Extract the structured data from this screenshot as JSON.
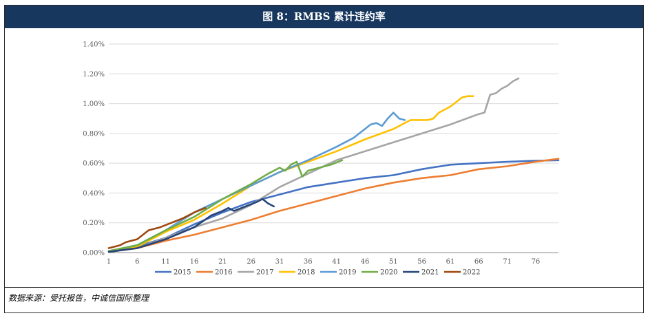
{
  "header": {
    "title": "图 8：RMBS 累计违约率"
  },
  "footer": {
    "source": "数据来源：受托报告，中诚信国际整理"
  },
  "chart_data": {
    "type": "line",
    "title": "图 8：RMBS 累计违约率",
    "xlabel": "",
    "ylabel": "",
    "xlim": [
      1,
      80
    ],
    "ylim": [
      0,
      1.4
    ],
    "y_ticks": [
      "0.00%",
      "0.20%",
      "0.40%",
      "0.60%",
      "0.80%",
      "1.00%",
      "1.20%",
      "1.40%"
    ],
    "x_ticks": [
      "1",
      "6",
      "11",
      "16",
      "21",
      "26",
      "31",
      "36",
      "41",
      "46",
      "51",
      "56",
      "61",
      "66",
      "71",
      "76"
    ],
    "legend_position": "bottom",
    "series": [
      {
        "name": "2015",
        "color": "#4472c4",
        "points": [
          [
            1,
            0.01
          ],
          [
            6,
            0.04
          ],
          [
            11,
            0.1
          ],
          [
            16,
            0.19
          ],
          [
            21,
            0.27
          ],
          [
            26,
            0.34
          ],
          [
            31,
            0.39
          ],
          [
            36,
            0.44
          ],
          [
            41,
            0.47
          ],
          [
            46,
            0.5
          ],
          [
            51,
            0.52
          ],
          [
            56,
            0.56
          ],
          [
            61,
            0.59
          ],
          [
            66,
            0.6
          ],
          [
            71,
            0.61
          ],
          [
            76,
            0.617
          ],
          [
            80,
            0.62
          ]
        ]
      },
      {
        "name": "2016",
        "color": "#ed7d31",
        "points": [
          [
            1,
            0.005
          ],
          [
            6,
            0.03
          ],
          [
            11,
            0.08
          ],
          [
            16,
            0.12
          ],
          [
            21,
            0.17
          ],
          [
            26,
            0.22
          ],
          [
            31,
            0.28
          ],
          [
            36,
            0.33
          ],
          [
            41,
            0.38
          ],
          [
            46,
            0.43
          ],
          [
            51,
            0.47
          ],
          [
            56,
            0.5
          ],
          [
            61,
            0.52
          ],
          [
            66,
            0.56
          ],
          [
            71,
            0.58
          ],
          [
            76,
            0.61
          ],
          [
            80,
            0.63
          ]
        ]
      },
      {
        "name": "2017",
        "color": "#a5a5a5",
        "points": [
          [
            1,
            0.005
          ],
          [
            6,
            0.03
          ],
          [
            11,
            0.1
          ],
          [
            16,
            0.17
          ],
          [
            21,
            0.23
          ],
          [
            26,
            0.32
          ],
          [
            31,
            0.44
          ],
          [
            36,
            0.53
          ],
          [
            41,
            0.62
          ],
          [
            46,
            0.68
          ],
          [
            51,
            0.74
          ],
          [
            56,
            0.8
          ],
          [
            61,
            0.86
          ],
          [
            66,
            0.93
          ],
          [
            67,
            0.94
          ],
          [
            68,
            1.06
          ],
          [
            69,
            1.07
          ],
          [
            70,
            1.1
          ],
          [
            71,
            1.12
          ],
          [
            72,
            1.15
          ],
          [
            73,
            1.17
          ]
        ]
      },
      {
        "name": "2018",
        "color": "#ffc000",
        "points": [
          [
            1,
            0.005
          ],
          [
            6,
            0.04
          ],
          [
            11,
            0.14
          ],
          [
            16,
            0.22
          ],
          [
            21,
            0.33
          ],
          [
            26,
            0.45
          ],
          [
            31,
            0.54
          ],
          [
            36,
            0.61
          ],
          [
            41,
            0.68
          ],
          [
            46,
            0.76
          ],
          [
            51,
            0.83
          ],
          [
            54,
            0.89
          ],
          [
            57,
            0.89
          ],
          [
            58,
            0.9
          ],
          [
            59,
            0.94
          ],
          [
            61,
            0.98
          ],
          [
            63,
            1.04
          ],
          [
            64,
            1.05
          ],
          [
            65,
            1.05
          ]
        ]
      },
      {
        "name": "2019",
        "color": "#5b9bd5",
        "points": [
          [
            1,
            0.01
          ],
          [
            6,
            0.05
          ],
          [
            11,
            0.15
          ],
          [
            16,
            0.27
          ],
          [
            21,
            0.36
          ],
          [
            26,
            0.45
          ],
          [
            31,
            0.54
          ],
          [
            36,
            0.62
          ],
          [
            41,
            0.71
          ],
          [
            44,
            0.77
          ],
          [
            46,
            0.83
          ],
          [
            47,
            0.86
          ],
          [
            48,
            0.87
          ],
          [
            49,
            0.85
          ],
          [
            50,
            0.9
          ],
          [
            51,
            0.94
          ],
          [
            52,
            0.9
          ],
          [
            53,
            0.89
          ]
        ]
      },
      {
        "name": "2020",
        "color": "#70ad47",
        "points": [
          [
            1,
            0.01
          ],
          [
            6,
            0.05
          ],
          [
            11,
            0.15
          ],
          [
            16,
            0.24
          ],
          [
            21,
            0.36
          ],
          [
            26,
            0.46
          ],
          [
            29,
            0.53
          ],
          [
            31,
            0.57
          ],
          [
            32,
            0.55
          ],
          [
            33,
            0.59
          ],
          [
            34,
            0.61
          ],
          [
            35,
            0.51
          ],
          [
            36,
            0.55
          ],
          [
            38,
            0.57
          ],
          [
            40,
            0.59
          ],
          [
            42,
            0.62
          ]
        ]
      },
      {
        "name": "2021",
        "color": "#264478",
        "points": [
          [
            1,
            0.005
          ],
          [
            6,
            0.03
          ],
          [
            11,
            0.09
          ],
          [
            16,
            0.17
          ],
          [
            19,
            0.25
          ],
          [
            21,
            0.28
          ],
          [
            22,
            0.3
          ],
          [
            23,
            0.28
          ],
          [
            25,
            0.31
          ],
          [
            27,
            0.34
          ],
          [
            28,
            0.36
          ],
          [
            29,
            0.33
          ],
          [
            30,
            0.31
          ]
        ]
      },
      {
        "name": "2022",
        "color": "#9e480e",
        "points": [
          [
            1,
            0.03
          ],
          [
            3,
            0.05
          ],
          [
            4,
            0.07
          ],
          [
            6,
            0.09
          ],
          [
            8,
            0.15
          ],
          [
            10,
            0.17
          ],
          [
            12,
            0.2
          ],
          [
            14,
            0.23
          ],
          [
            16,
            0.27
          ],
          [
            18,
            0.3
          ]
        ]
      }
    ]
  }
}
